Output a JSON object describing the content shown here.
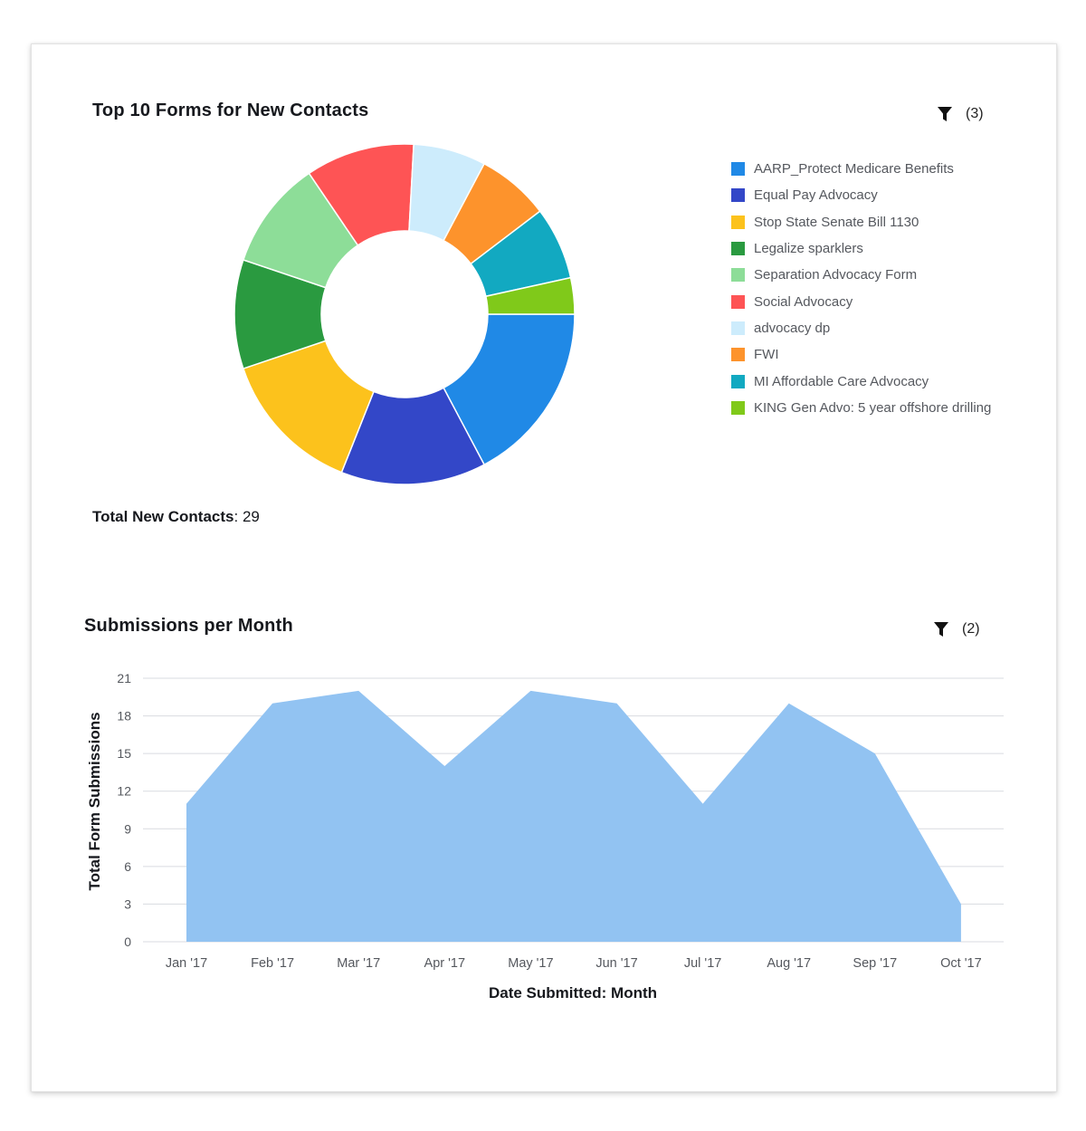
{
  "donut_widget": {
    "title": "Top 10 Forms for New Contacts",
    "filter_icon": "funnel-icon",
    "filter_count": "(3)",
    "total_label": "Total New Contacts",
    "total_value": "29"
  },
  "area_widget": {
    "title": "Submissions per Month",
    "filter_icon": "funnel-icon",
    "filter_count": "(2)"
  },
  "colors": {
    "area_fill": "#92c3f2",
    "grid": "#d9dbe0",
    "card_border": "#e3e3e3"
  },
  "chart_data": [
    {
      "type": "pie",
      "variant": "donut",
      "title": "Top 10 Forms for New Contacts",
      "legend_position": "right",
      "total": 29,
      "slices": [
        {
          "label": "AARP_Protect Medicare Benefits",
          "value": 5,
          "color": "#2089e6"
        },
        {
          "label": "Equal Pay Advocacy",
          "value": 4,
          "color": "#3347c8"
        },
        {
          "label": "Stop State Senate Bill 1130",
          "value": 4,
          "color": "#fcc21c"
        },
        {
          "label": "Legalize sparklers",
          "value": 3,
          "color": "#2a9a40"
        },
        {
          "label": "Separation Advocacy Form",
          "value": 3,
          "color": "#8ddd98"
        },
        {
          "label": "Social Advocacy",
          "value": 3,
          "color": "#fe5455"
        },
        {
          "label": "advocacy dp",
          "value": 2,
          "color": "#cdecfc"
        },
        {
          "label": "FWI",
          "value": 2,
          "color": "#fd932c"
        },
        {
          "label": "MI Affordable Care Advocacy",
          "value": 2,
          "color": "#12a9c1"
        },
        {
          "label": "KING Gen Advo: 5 year offshore drilling",
          "value": 1,
          "color": "#80c91a"
        }
      ]
    },
    {
      "type": "area",
      "title": "Submissions per Month",
      "xlabel": "Date Submitted: Month",
      "ylabel": "Total Form Submissions",
      "categories": [
        "Jan '17",
        "Feb '17",
        "Mar '17",
        "Apr '17",
        "May '17",
        "Jun '17",
        "Jul '17",
        "Aug '17",
        "Sep '17",
        "Oct '17"
      ],
      "values": [
        11,
        19,
        20,
        14,
        20,
        19,
        11,
        19,
        15,
        3
      ],
      "ylim": [
        0,
        21
      ],
      "yticks": [
        0,
        3,
        6,
        9,
        12,
        15,
        18,
        21
      ],
      "grid": true
    }
  ]
}
